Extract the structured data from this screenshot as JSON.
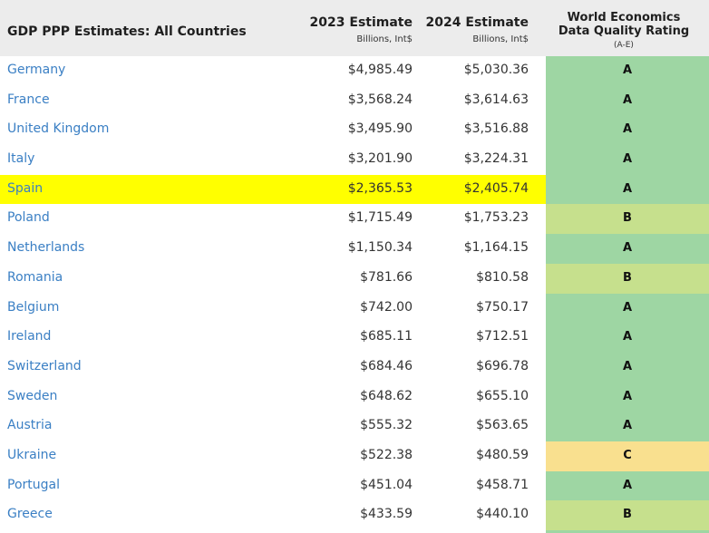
{
  "table": {
    "title": "GDP PPP Estimates: All Countries",
    "col_2023": {
      "label": "2023 Estimate",
      "unit": "Billions, Int$"
    },
    "col_2024": {
      "label": "2024 Estimate",
      "unit": "Billions, Int$"
    },
    "col_rating": {
      "line1": "World Economics",
      "line2": "Data Quality Rating",
      "sub": "(A-E)"
    },
    "rows": [
      {
        "country": "Germany",
        "v2023": "$4,985.49",
        "v2024": "$5,030.36",
        "rating": "A",
        "highlight": false
      },
      {
        "country": "France",
        "v2023": "$3,568.24",
        "v2024": "$3,614.63",
        "rating": "A",
        "highlight": false
      },
      {
        "country": "United Kingdom",
        "v2023": "$3,495.90",
        "v2024": "$3,516.88",
        "rating": "A",
        "highlight": false
      },
      {
        "country": "Italy",
        "v2023": "$3,201.90",
        "v2024": "$3,224.31",
        "rating": "A",
        "highlight": false
      },
      {
        "country": "Spain",
        "v2023": "$2,365.53",
        "v2024": "$2,405.74",
        "rating": "A",
        "highlight": true
      },
      {
        "country": "Poland",
        "v2023": "$1,715.49",
        "v2024": "$1,753.23",
        "rating": "B",
        "highlight": false
      },
      {
        "country": "Netherlands",
        "v2023": "$1,150.34",
        "v2024": "$1,164.15",
        "rating": "A",
        "highlight": false
      },
      {
        "country": "Romania",
        "v2023": "$781.66",
        "v2024": "$810.58",
        "rating": "B",
        "highlight": false
      },
      {
        "country": "Belgium",
        "v2023": "$742.00",
        "v2024": "$750.17",
        "rating": "A",
        "highlight": false
      },
      {
        "country": "Ireland",
        "v2023": "$685.11",
        "v2024": "$712.51",
        "rating": "A",
        "highlight": false
      },
      {
        "country": "Switzerland",
        "v2023": "$684.46",
        "v2024": "$696.78",
        "rating": "A",
        "highlight": false
      },
      {
        "country": "Sweden",
        "v2023": "$648.62",
        "v2024": "$655.10",
        "rating": "A",
        "highlight": false
      },
      {
        "country": "Austria",
        "v2023": "$555.32",
        "v2024": "$563.65",
        "rating": "A",
        "highlight": false
      },
      {
        "country": "Ukraine",
        "v2023": "$522.38",
        "v2024": "$480.59",
        "rating": "C",
        "highlight": false
      },
      {
        "country": "Portugal",
        "v2023": "$451.04",
        "v2024": "$458.71",
        "rating": "A",
        "highlight": false
      },
      {
        "country": "Greece",
        "v2023": "$433.59",
        "v2024": "$440.10",
        "rating": "B",
        "highlight": false
      }
    ]
  },
  "colors": {
    "link": "#3a7fc4",
    "highlight": "#ffff00",
    "rating_A": "#9ed6a3",
    "rating_B": "#c6e08d",
    "rating_C": "#f9e08f",
    "header_bg": "#ececec"
  }
}
